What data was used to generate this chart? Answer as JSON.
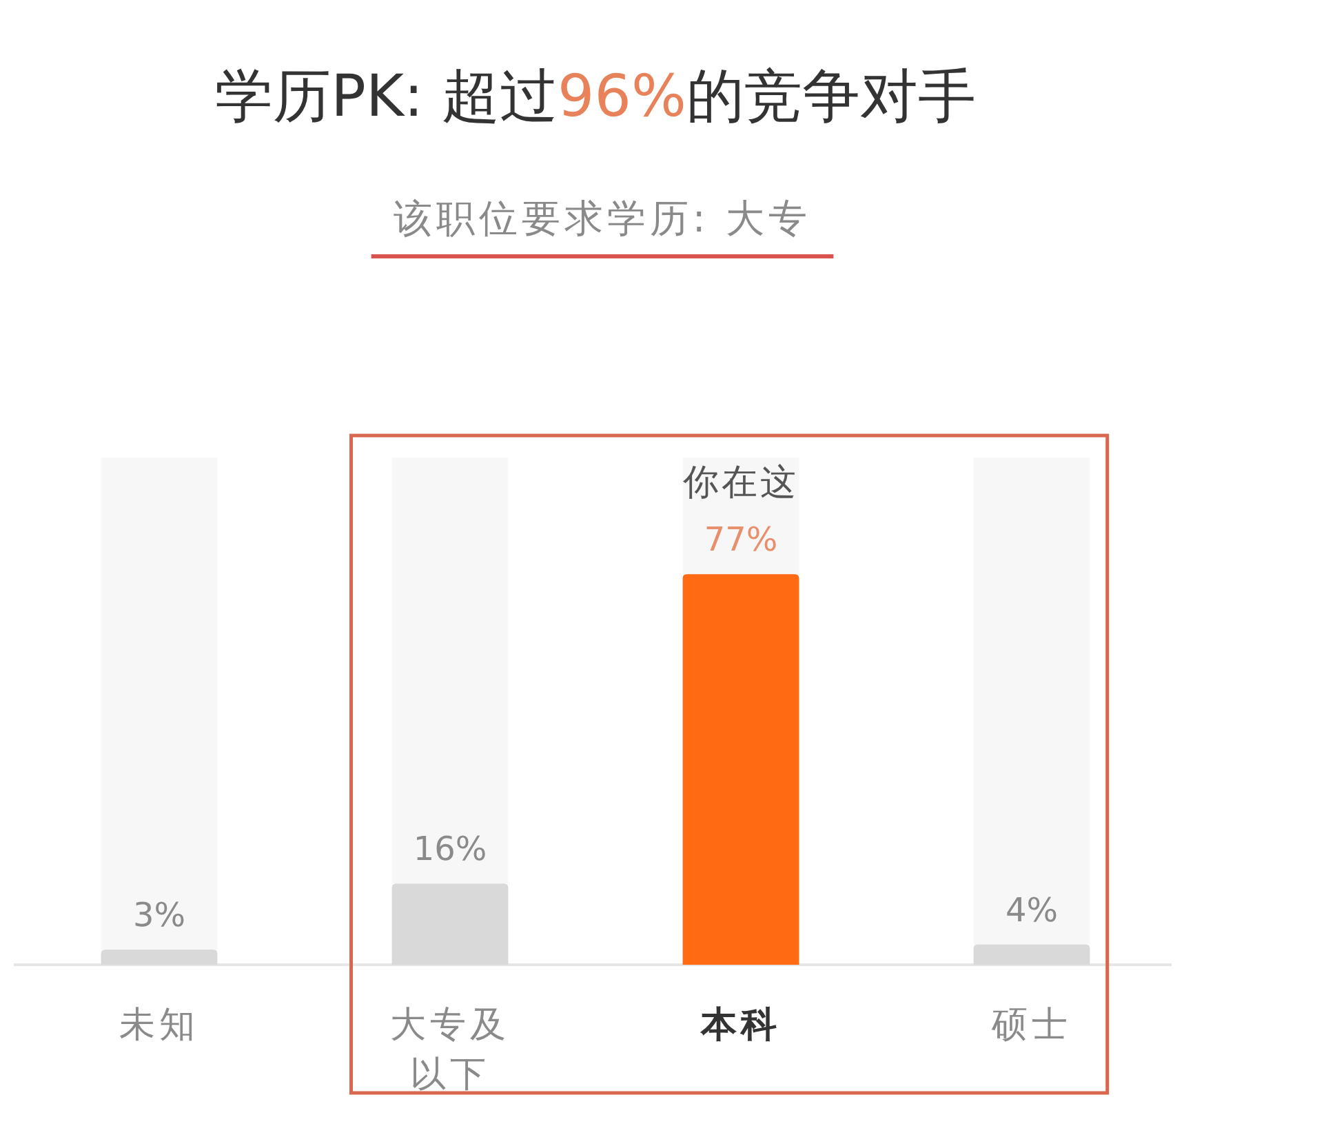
{
  "chart_data": {
    "type": "bar",
    "title": "学历PK: 超过**96%**的竞争对手",
    "subtitle": "该职位要求学历: 大专",
    "categories": [
      "未知",
      "大专及以下",
      "本科",
      "硕士"
    ],
    "values": [
      3,
      16,
      77,
      4
    ],
    "colors": [
      "#d9d9d9",
      "#d9d9d9",
      "#ff6a13",
      "#d9d9d9"
    ],
    "value_labels": [
      "3%",
      "16%",
      "77%",
      "4%"
    ],
    "ylim": [
      0,
      100
    ],
    "annotations": [
      {
        "text": "你在这",
        "x": "本科",
        "y": 77
      }
    ]
  }
}
